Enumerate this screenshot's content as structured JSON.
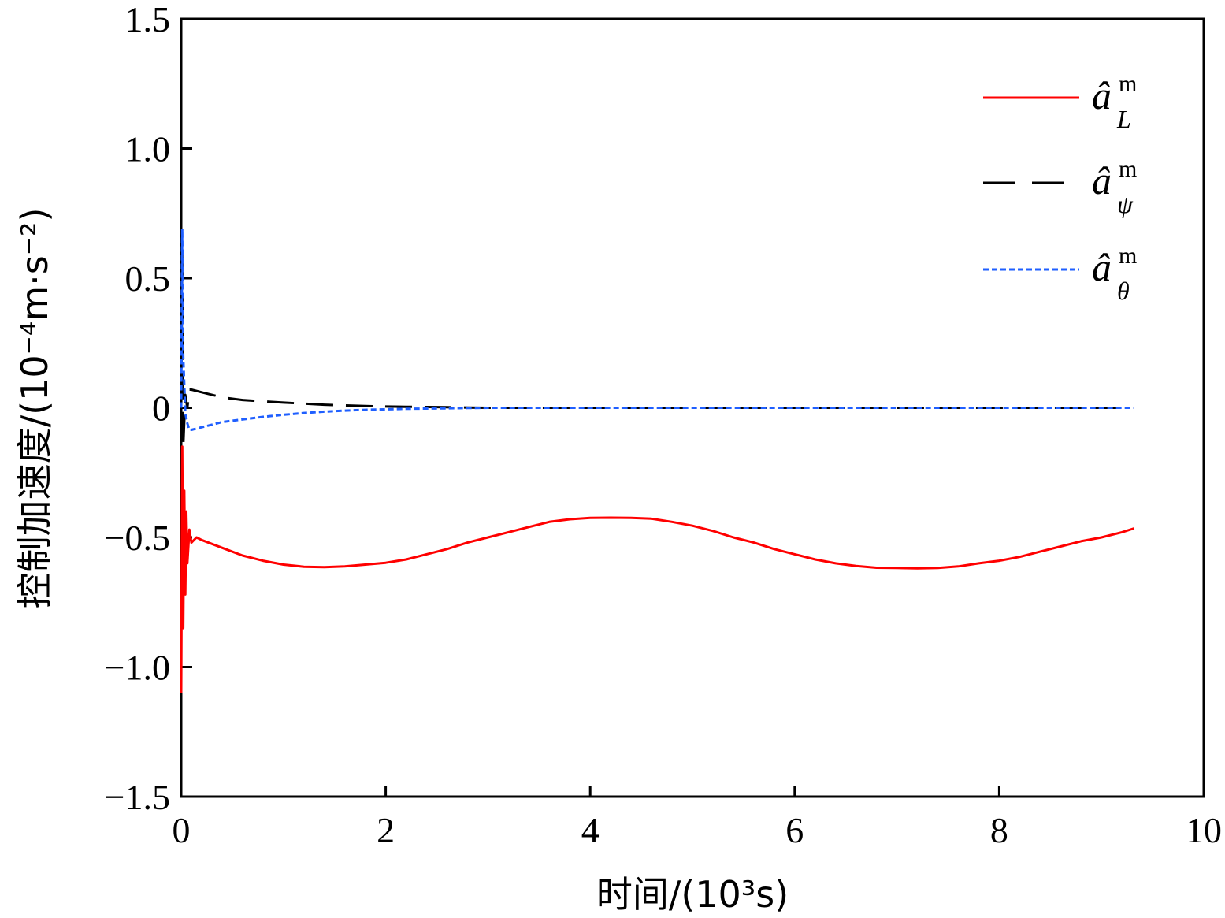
{
  "chart_data": {
    "type": "line",
    "xlabel": "时间/(10³s)",
    "ylabel": "控制加速度/(10⁻⁴m·s⁻²)",
    "xlim": [
      0,
      10
    ],
    "ylim": [
      -1.5,
      1.5
    ],
    "xticks": [
      0,
      2,
      4,
      6,
      8,
      10
    ],
    "xtick_labels": [
      "0",
      "2",
      "4",
      "6",
      "8",
      "10"
    ],
    "yticks": [
      1.5,
      1.0,
      0.5,
      0,
      -0.5,
      -1.0,
      -1.5
    ],
    "ytick_labels": [
      "1.5",
      "1.0",
      "0.5",
      "0",
      "−0.5",
      "−1.0",
      "−1.5"
    ],
    "grid": false,
    "legend_position": "top-right",
    "series": [
      {
        "name": "â_L^m",
        "name_base": "â",
        "name_sup": "m",
        "name_sub": "L",
        "color": "#ff0000",
        "style": "solid",
        "x": [
          0,
          0.01,
          0.02,
          0.03,
          0.04,
          0.05,
          0.06,
          0.08,
          0.1,
          0.15,
          0.2,
          0.4,
          0.6,
          0.8,
          1.0,
          1.2,
          1.4,
          1.6,
          1.8,
          2.0,
          2.2,
          2.4,
          2.6,
          2.8,
          3.0,
          3.2,
          3.4,
          3.6,
          3.8,
          4.0,
          4.2,
          4.4,
          4.6,
          4.8,
          5.0,
          5.2,
          5.4,
          5.6,
          5.8,
          6.0,
          6.2,
          6.4,
          6.6,
          6.8,
          7.0,
          7.2,
          7.4,
          7.6,
          7.8,
          8.0,
          8.2,
          8.4,
          8.6,
          8.8,
          9.0,
          9.2,
          9.32
        ],
        "y": [
          -1.1,
          -0.15,
          -0.85,
          -0.32,
          -0.72,
          -0.4,
          -0.6,
          -0.47,
          -0.52,
          -0.5,
          -0.51,
          -0.54,
          -0.57,
          -0.59,
          -0.605,
          -0.613,
          -0.615,
          -0.612,
          -0.605,
          -0.598,
          -0.585,
          -0.565,
          -0.545,
          -0.52,
          -0.5,
          -0.48,
          -0.46,
          -0.44,
          -0.43,
          -0.425,
          -0.424,
          -0.425,
          -0.428,
          -0.44,
          -0.455,
          -0.475,
          -0.5,
          -0.52,
          -0.545,
          -0.565,
          -0.585,
          -0.6,
          -0.61,
          -0.617,
          -0.618,
          -0.619,
          -0.618,
          -0.612,
          -0.6,
          -0.59,
          -0.575,
          -0.555,
          -0.535,
          -0.515,
          -0.5,
          -0.48,
          -0.465
        ]
      },
      {
        "name": "â_ψ^m",
        "name_base": "â",
        "name_sup": "m",
        "name_sub": "ψ",
        "color": "#000000",
        "style": "dashed",
        "x": [
          0,
          0.01,
          0.02,
          0.04,
          0.06,
          0.08,
          0.1,
          0.2,
          0.4,
          0.6,
          0.8,
          1.0,
          1.2,
          1.4,
          1.6,
          1.8,
          2.0,
          2.2,
          2.4,
          2.6,
          2.8,
          3.0,
          9.32
        ],
        "y": [
          0.0,
          0.6,
          -0.15,
          0.05,
          0.0,
          0.07,
          0.07,
          0.06,
          0.04,
          0.03,
          0.025,
          0.02,
          0.016,
          0.012,
          0.009,
          0.007,
          0.005,
          0.004,
          0.003,
          0.002,
          0.001,
          0.0,
          0.0
        ]
      },
      {
        "name": "â_θ^m",
        "name_base": "â",
        "name_sup": "m",
        "name_sub": "θ",
        "color": "#1f5fff",
        "style": "dotted",
        "x": [
          0,
          0.01,
          0.02,
          0.04,
          0.06,
          0.08,
          0.1,
          0.15,
          0.2,
          0.3,
          0.4,
          0.6,
          0.8,
          1.0,
          1.2,
          1.4,
          1.6,
          1.8,
          2.0,
          2.2,
          2.4,
          2.6,
          2.8,
          3.0,
          9.32
        ],
        "y": [
          0.0,
          0.69,
          0.2,
          -0.02,
          -0.06,
          -0.085,
          -0.085,
          -0.08,
          -0.075,
          -0.065,
          -0.055,
          -0.045,
          -0.035,
          -0.027,
          -0.02,
          -0.015,
          -0.011,
          -0.008,
          -0.006,
          -0.004,
          -0.003,
          -0.002,
          -0.001,
          0.0,
          0.0
        ]
      }
    ]
  }
}
